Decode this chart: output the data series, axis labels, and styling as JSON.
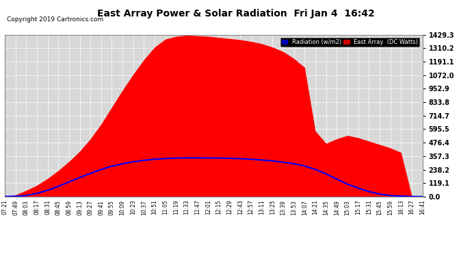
{
  "title": "East Array Power & Solar Radiation  Fri Jan 4  16:42",
  "copyright": "Copyright 2019 Cartronics.com",
  "background_color": "#ffffff",
  "plot_bg_color": "#d8d8d8",
  "grid_color": "#ffffff",
  "yticks": [
    0.0,
    119.1,
    238.2,
    357.3,
    476.4,
    595.5,
    714.7,
    833.8,
    952.9,
    1072.0,
    1191.1,
    1310.2,
    1429.3
  ],
  "ymax": 1429.3,
  "ymin": 0.0,
  "legend_radiation_label": "Radiation (w/m2)",
  "legend_east_label": "East Array  (DC Watts)",
  "fill_color": "#ff0000",
  "line_color": "#0000ff",
  "x_labels": [
    "07:21",
    "07:49",
    "08:03",
    "08:17",
    "08:31",
    "08:45",
    "08:59",
    "09:13",
    "09:27",
    "09:41",
    "09:55",
    "10:09",
    "10:23",
    "10:37",
    "10:51",
    "11:05",
    "11:19",
    "11:33",
    "11:47",
    "12:01",
    "12:15",
    "12:29",
    "12:43",
    "12:57",
    "13:11",
    "13:25",
    "13:39",
    "13:53",
    "14:07",
    "14:21",
    "14:35",
    "14:49",
    "15:03",
    "15:17",
    "15:31",
    "15:45",
    "15:59",
    "16:13",
    "16:27",
    "16:41"
  ],
  "east_array_data": [
    3,
    15,
    55,
    100,
    160,
    230,
    310,
    400,
    510,
    640,
    790,
    940,
    1080,
    1210,
    1320,
    1390,
    1415,
    1425,
    1420,
    1415,
    1405,
    1395,
    1385,
    1370,
    1350,
    1320,
    1280,
    1220,
    1140,
    580,
    470,
    510,
    540,
    520,
    490,
    460,
    430,
    390,
    10,
    3
  ],
  "radiation_data": [
    1,
    3,
    10,
    28,
    55,
    90,
    130,
    168,
    205,
    240,
    268,
    290,
    308,
    320,
    330,
    336,
    340,
    342,
    342,
    341,
    340,
    338,
    335,
    330,
    323,
    315,
    304,
    290,
    270,
    240,
    200,
    155,
    110,
    75,
    45,
    22,
    10,
    4,
    1,
    0
  ]
}
